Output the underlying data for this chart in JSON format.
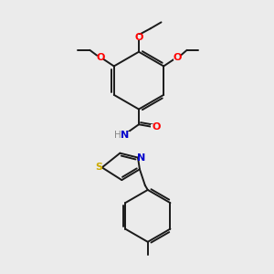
{
  "bg_color": "#ebebeb",
  "bond_color": "#1a1a1a",
  "atom_colors": {
    "O": "#ff0000",
    "N": "#0000cc",
    "S": "#ccaa00",
    "H": "#888888",
    "C": "#1a1a1a"
  },
  "figsize": [
    3.0,
    3.0
  ],
  "dpi": 100
}
